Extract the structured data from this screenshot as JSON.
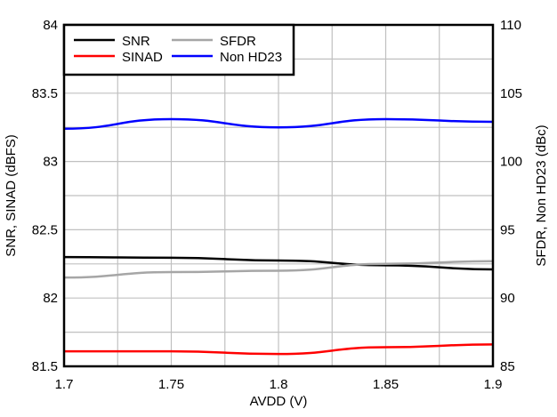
{
  "chart_data": {
    "type": "line",
    "title": "",
    "xlabel": "AVDD (V)",
    "ylabel": "SNR, SINAD (dBFS)",
    "y2label": "SFDR, Non HD23 (dBc)",
    "xlim": [
      1.7,
      1.9
    ],
    "ylim": [
      81.5,
      84
    ],
    "y2lim": [
      85,
      110
    ],
    "x_ticks": [
      "1.7",
      "1.75",
      "1.8",
      "1.85",
      "1.9"
    ],
    "y_ticks": [
      "81.5",
      "82",
      "82.5",
      "83",
      "83.5",
      "84"
    ],
    "y2_ticks": [
      "85",
      "90",
      "95",
      "100",
      "105",
      "110"
    ],
    "grid": true,
    "legend_position": "top-left",
    "x": [
      1.7,
      1.75,
      1.8,
      1.85,
      1.9
    ],
    "series": [
      {
        "name": "SNR",
        "axis": "left",
        "color": "#000000",
        "values": [
          82.3,
          82.295,
          82.275,
          82.24,
          82.21
        ]
      },
      {
        "name": "SINAD",
        "axis": "left",
        "color": "#ff0000",
        "values": [
          81.61,
          81.61,
          81.59,
          81.64,
          81.66
        ]
      },
      {
        "name": "SFDR",
        "axis": "right",
        "color": "#a6a6a6",
        "values": [
          91.5,
          91.9,
          92.0,
          92.5,
          92.7
        ]
      },
      {
        "name": "Non HD23",
        "axis": "right",
        "color": "#0000ff",
        "values": [
          102.4,
          103.1,
          102.5,
          103.1,
          102.9
        ]
      }
    ]
  },
  "legend": {
    "snr": "SNR",
    "sfdr": "SFDR",
    "sinad": "SINAD",
    "nonhd23": "Non HD23"
  },
  "axes": {
    "xlabel": "AVDD (V)",
    "ylabel": "SNR, SINAD (dBFS)",
    "y2label": "SFDR, Non HD23 (dBc)",
    "x_ticks": [
      "1.7",
      "1.75",
      "1.8",
      "1.85",
      "1.9"
    ],
    "y_ticks": [
      "81.5",
      "82",
      "82.5",
      "83",
      "83.5",
      "84"
    ],
    "y2_ticks": [
      "85",
      "90",
      "95",
      "100",
      "105",
      "110"
    ]
  }
}
